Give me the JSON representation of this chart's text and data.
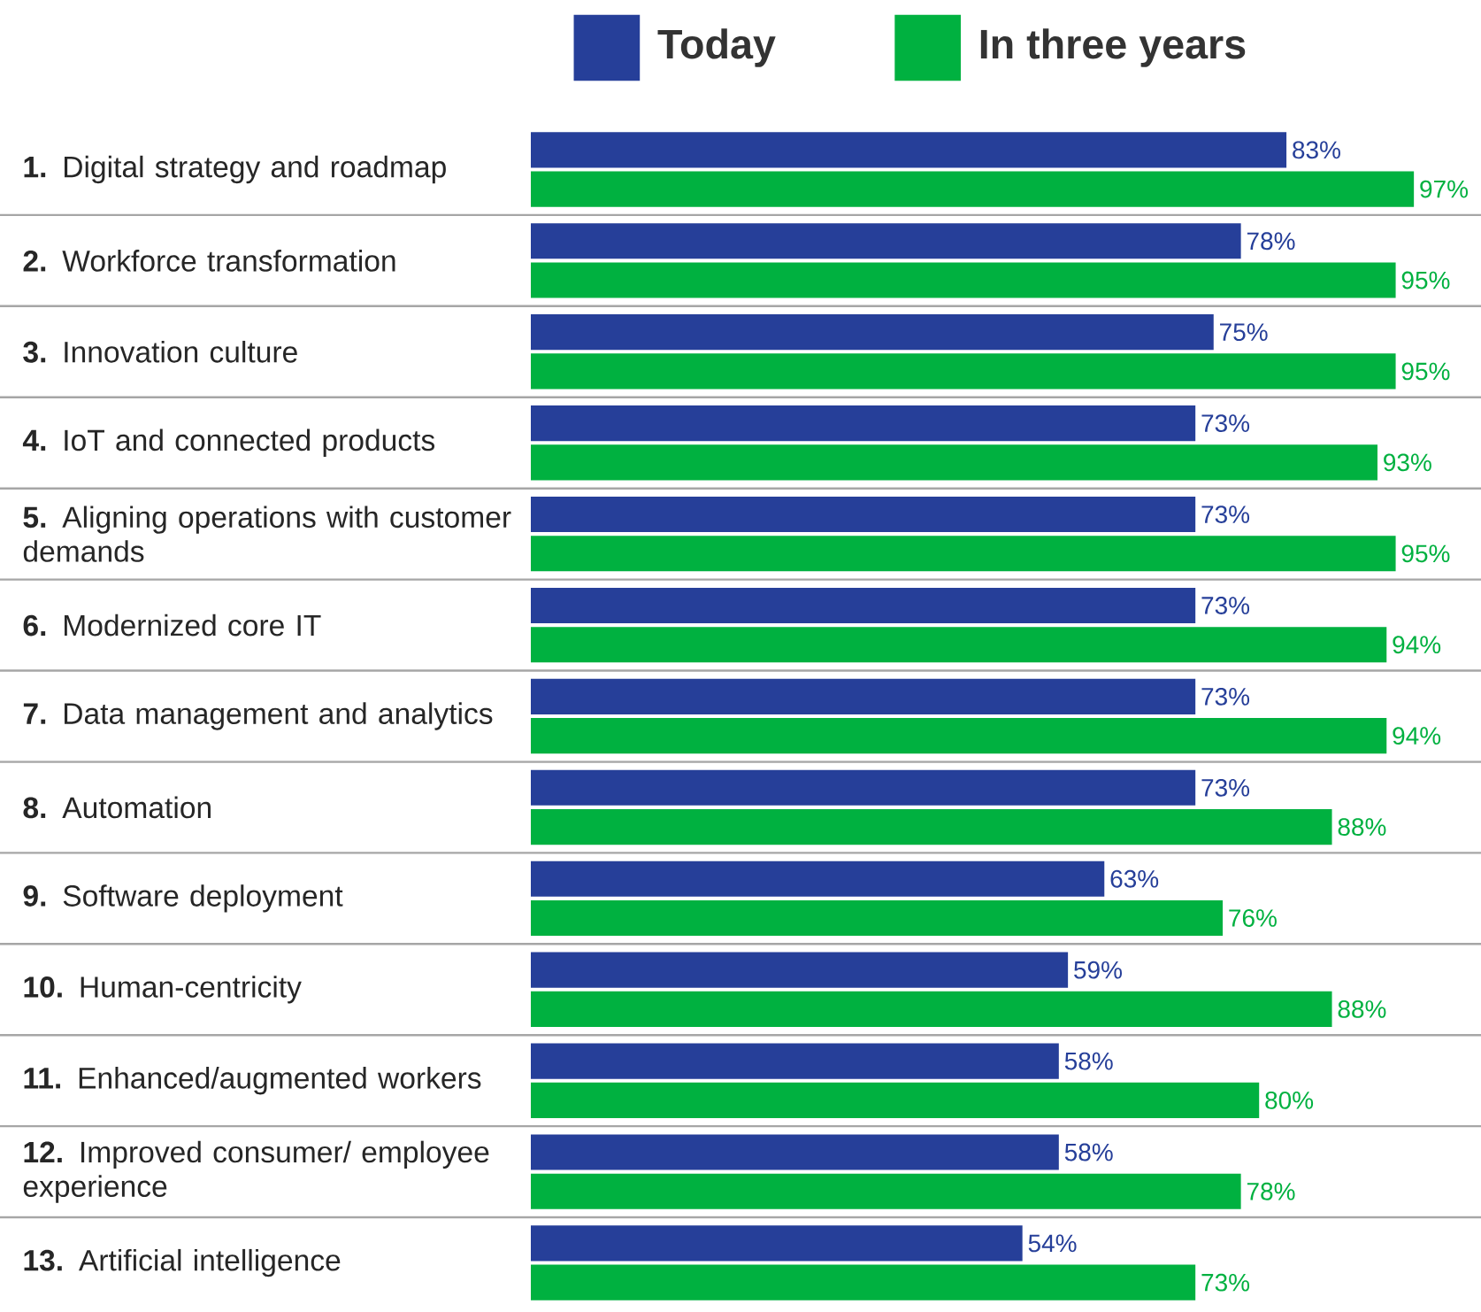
{
  "chart_data": {
    "type": "bar",
    "orientation": "horizontal",
    "legend": "top",
    "categories": [
      "**1.** Digital strategy and roadmap",
      "**2.** Workforce transformation",
      "**3.** Innovation culture",
      "**4.** IoT and connected products",
      "**5.** Aligning operations with customer demands",
      "**6.** Modernized core IT",
      "**7.** Data management and analytics",
      "**8.** Automation",
      "**9.** Software deployment",
      "**10.** Human-centricity",
      "**11.** Enhanced/augmented workers",
      "**12.** Improved consumer/ employee experience",
      "**13.** Artificial intelligence"
    ],
    "series": [
      {
        "name": "Today",
        "color": "#263f99",
        "values": [
          83,
          78,
          75,
          73,
          73,
          73,
          73,
          73,
          63,
          59,
          58,
          58,
          54
        ],
        "value_labels": [
          "83%",
          "78%",
          "75%",
          "73%",
          "73%",
          "73%",
          "73%",
          "73%",
          "63%",
          "59%",
          "58%",
          "58%",
          "54%"
        ]
      },
      {
        "name": "In three years",
        "color": "#00b140",
        "values": [
          97,
          95,
          95,
          93,
          95,
          94,
          94,
          88,
          76,
          88,
          80,
          78,
          73
        ],
        "value_labels": [
          "97%",
          "95%",
          "95%",
          "93%",
          "95%",
          "94%",
          "94%",
          "88%",
          "76%",
          "88%",
          "80%",
          "78%",
          "73%"
        ]
      }
    ]
  }
}
